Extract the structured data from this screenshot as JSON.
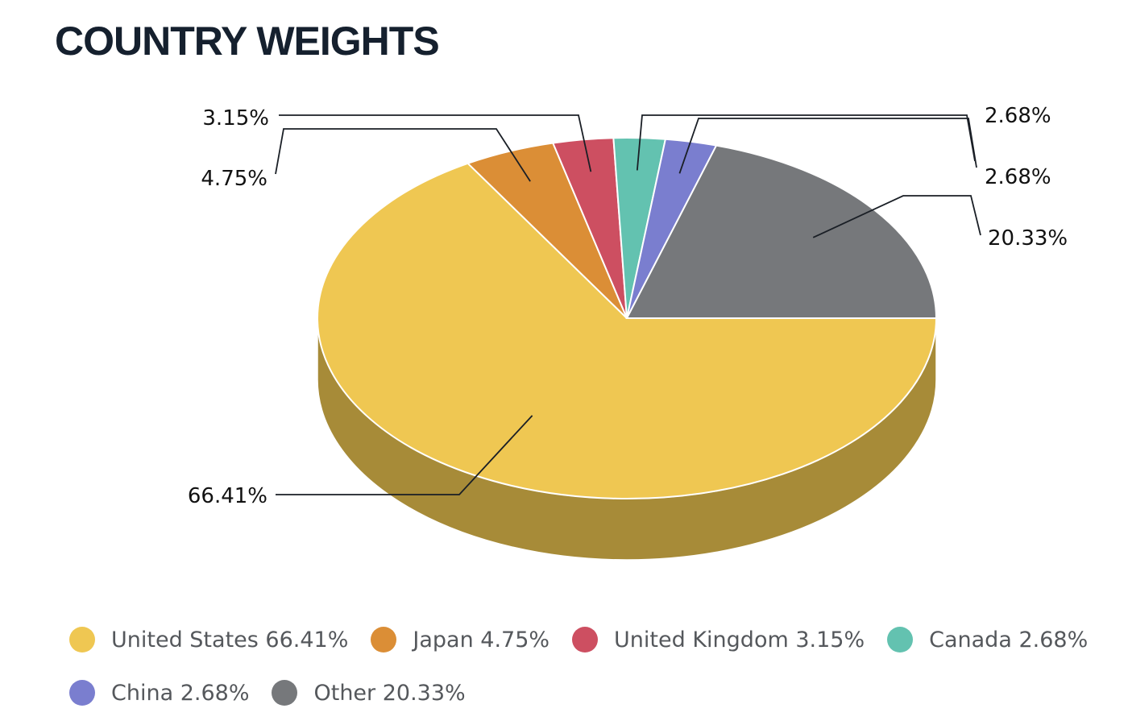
{
  "chart_data": {
    "type": "pie",
    "title": "COUNTRY WEIGHTS",
    "style": "3d",
    "categories": [
      "United States",
      "Japan",
      "United Kingdom",
      "Canada",
      "China",
      "Other"
    ],
    "values": [
      66.41,
      4.75,
      3.15,
      2.68,
      2.68,
      20.33
    ],
    "data_labels": [
      "66.41%",
      "4.75%",
      "3.15%",
      "2.68%",
      "2.68%",
      "20.33%"
    ],
    "colors": [
      "#efc752",
      "#db8e36",
      "#cd4f61",
      "#63c2b0",
      "#7a7ecf",
      "#76787b"
    ],
    "side_colors": [
      "#a78b38",
      "#9a6426",
      "#903744",
      "#46887b",
      "#565891",
      "#535456"
    ],
    "legend_entries": [
      "United States 66.41%",
      "Japan 4.75%",
      "United Kingdom 3.15%",
      "Canada 2.68%",
      "China 2.68%",
      "Other 20.33%"
    ],
    "legend_position": "bottom"
  }
}
